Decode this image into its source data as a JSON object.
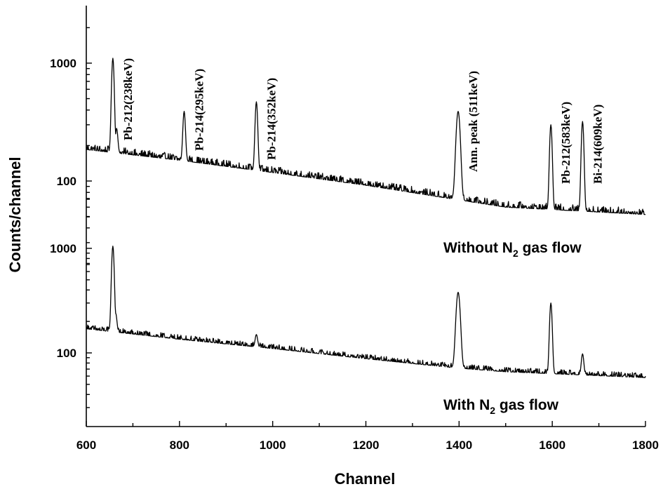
{
  "chart_data": {
    "type": "line",
    "xlabel": "Channel",
    "ylabel": "Counts/channel",
    "xlim": [
      600,
      1800
    ],
    "x_ticks": [
      "600",
      "800",
      "1000",
      "1200",
      "1400",
      "1600",
      "1800"
    ],
    "y_scale": "log",
    "y_tick_labels": {
      "upper": [
        "1000",
        "100"
      ],
      "lower": [
        "1000",
        "100"
      ]
    },
    "grid": false,
    "peak_labels": [
      {
        "text": "Pb-212(238keV)",
        "channel": 657
      },
      {
        "text": "Pb-214(295keV)",
        "channel": 810
      },
      {
        "text": "Pb-214(352keV)",
        "channel": 965
      },
      {
        "text": "Ann. peak (511keV)",
        "channel": 1398
      },
      {
        "text": "Pb-212(583keV)",
        "channel": 1597
      },
      {
        "text": "Bi-214(609keV)",
        "channel": 1665
      }
    ],
    "series": [
      {
        "name": "Without N2 gas flow",
        "label_main": "Without N",
        "label_sub": "2",
        "label_rest": " gas flow",
        "baseline": [
          [
            600,
            185
          ],
          [
            800,
            150
          ],
          [
            1000,
            118
          ],
          [
            1200,
            92
          ],
          [
            1390,
            70
          ],
          [
            1500,
            60
          ],
          [
            1800,
            52
          ]
        ],
        "peaks": [
          {
            "x": 657,
            "y": 1100,
            "width": 2.5
          },
          {
            "x": 665,
            "y": 280,
            "width": 2.5
          },
          {
            "x": 810,
            "y": 390,
            "width": 2.5
          },
          {
            "x": 965,
            "y": 470,
            "width": 2.5
          },
          {
            "x": 1398,
            "y": 390,
            "width": 4
          },
          {
            "x": 1597,
            "y": 300,
            "width": 2.5
          },
          {
            "x": 1665,
            "y": 320,
            "width": 2.5
          }
        ],
        "noise": 0.12
      },
      {
        "name": "With N2 gas flow",
        "label_main": "With N",
        "label_sub": "2",
        "label_rest": " gas flow",
        "baseline": [
          [
            600,
            170
          ],
          [
            800,
            135
          ],
          [
            1000,
            110
          ],
          [
            1200,
            88
          ],
          [
            1390,
            72
          ],
          [
            1500,
            66
          ],
          [
            1800,
            58
          ]
        ],
        "peaks": [
          {
            "x": 657,
            "y": 1050,
            "width": 2.5
          },
          {
            "x": 663,
            "y": 240,
            "width": 2.5
          },
          {
            "x": 965,
            "y": 150,
            "width": 2.5
          },
          {
            "x": 1398,
            "y": 380,
            "width": 4
          },
          {
            "x": 1597,
            "y": 300,
            "width": 2.5
          },
          {
            "x": 1665,
            "y": 98,
            "width": 2.5
          }
        ],
        "noise": 0.1
      }
    ]
  }
}
